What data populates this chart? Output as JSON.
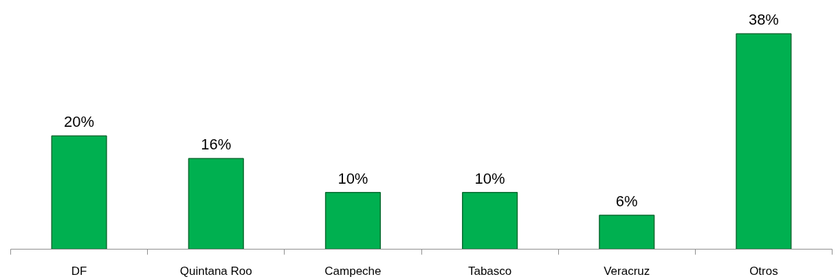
{
  "chart_data": {
    "type": "bar",
    "categories": [
      "DF",
      "Quintana Roo",
      "Campeche",
      "Tabasco",
      "Veracruz",
      "Otros"
    ],
    "values": [
      20,
      16,
      10,
      10,
      6,
      38
    ],
    "value_labels": [
      "20%",
      "16%",
      "10%",
      "10%",
      "6%",
      "38%"
    ],
    "color": "#00b050",
    "grid": false
  }
}
